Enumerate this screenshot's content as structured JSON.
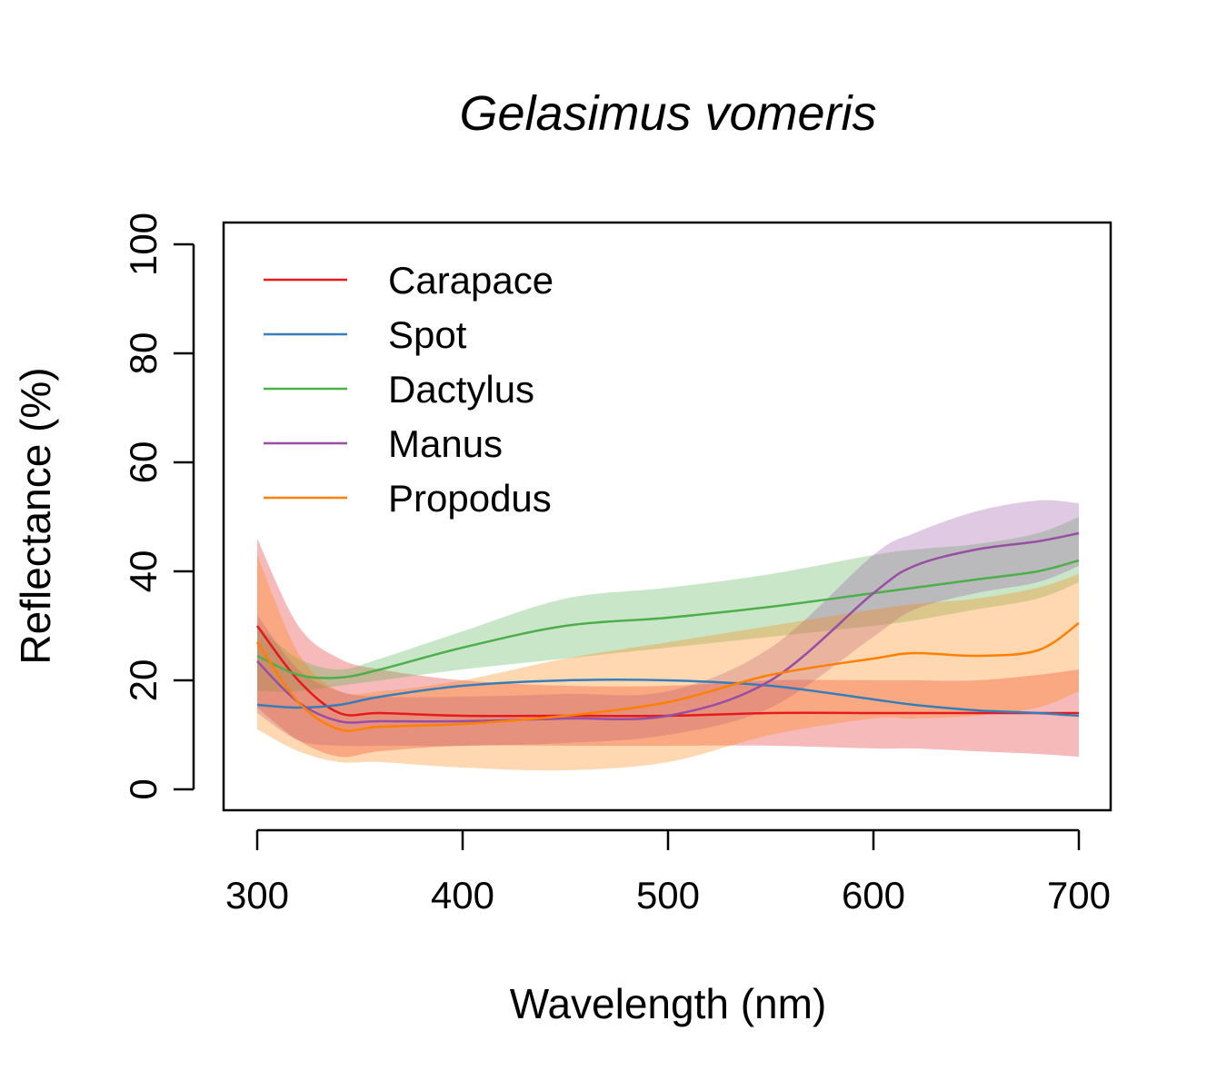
{
  "chart_data": {
    "type": "line",
    "title": "Gelasimus vomeris",
    "xlabel": "Wavelength (nm)",
    "ylabel": "Reflectance (%)",
    "xlim": [
      300,
      700
    ],
    "ylim": [
      0,
      100
    ],
    "x_ticks": [
      300,
      400,
      500,
      600,
      700
    ],
    "y_ticks": [
      0,
      20,
      40,
      60,
      80,
      100
    ],
    "x_tick_labels": [
      "300",
      "400",
      "500",
      "600",
      "700"
    ],
    "y_tick_labels": [
      "0",
      "20",
      "40",
      "60",
      "80",
      "100"
    ],
    "grid": false,
    "legend_position": "top-left",
    "x": [
      300,
      320,
      340,
      360,
      400,
      450,
      500,
      550,
      600,
      620,
      650,
      680,
      700
    ],
    "series": [
      {
        "name": "Carapace",
        "color": "#E41A1C",
        "values": [
          30,
          20,
          14,
          14,
          13.5,
          13.5,
          13.5,
          14,
          14,
          14,
          14,
          14,
          14
        ],
        "lower": [
          15,
          9,
          6,
          7,
          8,
          8,
          8,
          8,
          7.5,
          7.5,
          7,
          6.5,
          6
        ],
        "upper": [
          46,
          30,
          24,
          22,
          20,
          19,
          19,
          20,
          20,
          20,
          20,
          21,
          22
        ]
      },
      {
        "name": "Spot",
        "color": "#377EB8",
        "values": [
          15.5,
          15,
          15.5,
          17,
          19,
          20,
          20,
          19,
          16.5,
          15.5,
          14.5,
          14,
          13.5
        ],
        "lower": null,
        "upper": null
      },
      {
        "name": "Dactylus",
        "color": "#4DAF4A",
        "values": [
          24.5,
          21,
          20.5,
          22,
          26,
          30,
          31.5,
          33.5,
          36,
          37,
          38.5,
          40,
          42
        ],
        "lower": [
          18,
          18,
          19,
          20,
          22,
          24,
          26,
          28,
          30,
          31,
          33,
          35,
          38
        ],
        "upper": [
          30,
          24,
          22,
          24,
          29,
          35,
          37,
          39.5,
          43,
          44,
          45,
          47,
          50
        ]
      },
      {
        "name": "Manus",
        "color": "#984EA3",
        "values": [
          23.5,
          16,
          12.5,
          12.5,
          12.5,
          13,
          13.5,
          20,
          36,
          41,
          44,
          45.5,
          47
        ],
        "lower": [
          14,
          9,
          8,
          8,
          8,
          8.5,
          10,
          15,
          28,
          33,
          36,
          38,
          41
        ],
        "upper": [
          32,
          22,
          18,
          17,
          17,
          17.5,
          18,
          26,
          43,
          47,
          51,
          53,
          52.5
        ]
      },
      {
        "name": "Propodus",
        "color": "#FF7F00",
        "values": [
          27,
          16,
          11,
          11.5,
          12,
          13.5,
          16,
          21,
          24,
          25,
          24.5,
          25.5,
          30.5
        ],
        "lower": [
          11,
          7,
          5,
          5,
          4,
          3.5,
          5,
          10,
          13,
          13,
          13.5,
          15,
          18
        ],
        "upper": [
          43,
          25,
          18,
          18,
          20,
          24,
          27,
          30,
          33,
          34,
          35,
          37,
          39.5
        ]
      }
    ]
  }
}
